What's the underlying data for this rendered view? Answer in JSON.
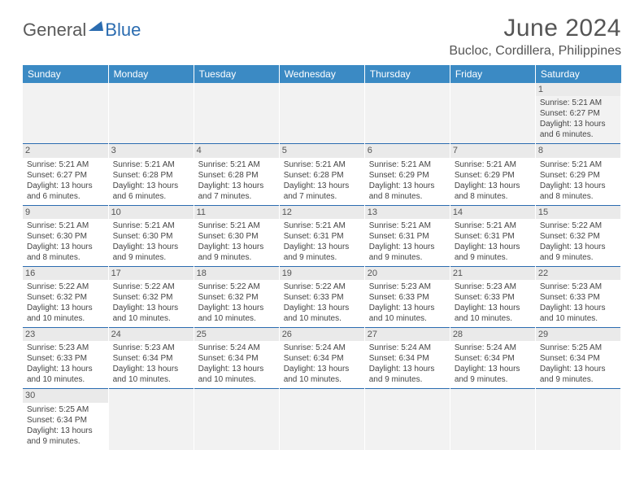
{
  "logo": {
    "part1": "General",
    "part2": "Blue"
  },
  "title": "June 2024",
  "location": "Bucloc, Cordillera, Philippines",
  "dayHeaders": [
    "Sunday",
    "Monday",
    "Tuesday",
    "Wednesday",
    "Thursday",
    "Friday",
    "Saturday"
  ],
  "style": {
    "header_bg": "#3b8ac4",
    "header_fg": "#ffffff",
    "body_font_size": 10,
    "title_color": "#555555",
    "daynum_bg": "#eaeaea",
    "row_divider": "#2b6cb0",
    "page_bg": "#ffffff"
  },
  "weeks": [
    [
      null,
      null,
      null,
      null,
      null,
      null,
      {
        "n": "1",
        "sr": "5:21 AM",
        "ss": "6:27 PM",
        "dl": "13 hours and 6 minutes."
      }
    ],
    [
      {
        "n": "2",
        "sr": "5:21 AM",
        "ss": "6:27 PM",
        "dl": "13 hours and 6 minutes."
      },
      {
        "n": "3",
        "sr": "5:21 AM",
        "ss": "6:28 PM",
        "dl": "13 hours and 6 minutes."
      },
      {
        "n": "4",
        "sr": "5:21 AM",
        "ss": "6:28 PM",
        "dl": "13 hours and 7 minutes."
      },
      {
        "n": "5",
        "sr": "5:21 AM",
        "ss": "6:28 PM",
        "dl": "13 hours and 7 minutes."
      },
      {
        "n": "6",
        "sr": "5:21 AM",
        "ss": "6:29 PM",
        "dl": "13 hours and 8 minutes."
      },
      {
        "n": "7",
        "sr": "5:21 AM",
        "ss": "6:29 PM",
        "dl": "13 hours and 8 minutes."
      },
      {
        "n": "8",
        "sr": "5:21 AM",
        "ss": "6:29 PM",
        "dl": "13 hours and 8 minutes."
      }
    ],
    [
      {
        "n": "9",
        "sr": "5:21 AM",
        "ss": "6:30 PM",
        "dl": "13 hours and 8 minutes."
      },
      {
        "n": "10",
        "sr": "5:21 AM",
        "ss": "6:30 PM",
        "dl": "13 hours and 9 minutes."
      },
      {
        "n": "11",
        "sr": "5:21 AM",
        "ss": "6:30 PM",
        "dl": "13 hours and 9 minutes."
      },
      {
        "n": "12",
        "sr": "5:21 AM",
        "ss": "6:31 PM",
        "dl": "13 hours and 9 minutes."
      },
      {
        "n": "13",
        "sr": "5:21 AM",
        "ss": "6:31 PM",
        "dl": "13 hours and 9 minutes."
      },
      {
        "n": "14",
        "sr": "5:21 AM",
        "ss": "6:31 PM",
        "dl": "13 hours and 9 minutes."
      },
      {
        "n": "15",
        "sr": "5:22 AM",
        "ss": "6:32 PM",
        "dl": "13 hours and 9 minutes."
      }
    ],
    [
      {
        "n": "16",
        "sr": "5:22 AM",
        "ss": "6:32 PM",
        "dl": "13 hours and 10 minutes."
      },
      {
        "n": "17",
        "sr": "5:22 AM",
        "ss": "6:32 PM",
        "dl": "13 hours and 10 minutes."
      },
      {
        "n": "18",
        "sr": "5:22 AM",
        "ss": "6:32 PM",
        "dl": "13 hours and 10 minutes."
      },
      {
        "n": "19",
        "sr": "5:22 AM",
        "ss": "6:33 PM",
        "dl": "13 hours and 10 minutes."
      },
      {
        "n": "20",
        "sr": "5:23 AM",
        "ss": "6:33 PM",
        "dl": "13 hours and 10 minutes."
      },
      {
        "n": "21",
        "sr": "5:23 AM",
        "ss": "6:33 PM",
        "dl": "13 hours and 10 minutes."
      },
      {
        "n": "22",
        "sr": "5:23 AM",
        "ss": "6:33 PM",
        "dl": "13 hours and 10 minutes."
      }
    ],
    [
      {
        "n": "23",
        "sr": "5:23 AM",
        "ss": "6:33 PM",
        "dl": "13 hours and 10 minutes."
      },
      {
        "n": "24",
        "sr": "5:23 AM",
        "ss": "6:34 PM",
        "dl": "13 hours and 10 minutes."
      },
      {
        "n": "25",
        "sr": "5:24 AM",
        "ss": "6:34 PM",
        "dl": "13 hours and 10 minutes."
      },
      {
        "n": "26",
        "sr": "5:24 AM",
        "ss": "6:34 PM",
        "dl": "13 hours and 10 minutes."
      },
      {
        "n": "27",
        "sr": "5:24 AM",
        "ss": "6:34 PM",
        "dl": "13 hours and 9 minutes."
      },
      {
        "n": "28",
        "sr": "5:24 AM",
        "ss": "6:34 PM",
        "dl": "13 hours and 9 minutes."
      },
      {
        "n": "29",
        "sr": "5:25 AM",
        "ss": "6:34 PM",
        "dl": "13 hours and 9 minutes."
      }
    ],
    [
      {
        "n": "30",
        "sr": "5:25 AM",
        "ss": "6:34 PM",
        "dl": "13 hours and 9 minutes."
      },
      null,
      null,
      null,
      null,
      null,
      null
    ]
  ],
  "labels": {
    "sunrise": "Sunrise:",
    "sunset": "Sunset:",
    "daylight": "Daylight:"
  }
}
